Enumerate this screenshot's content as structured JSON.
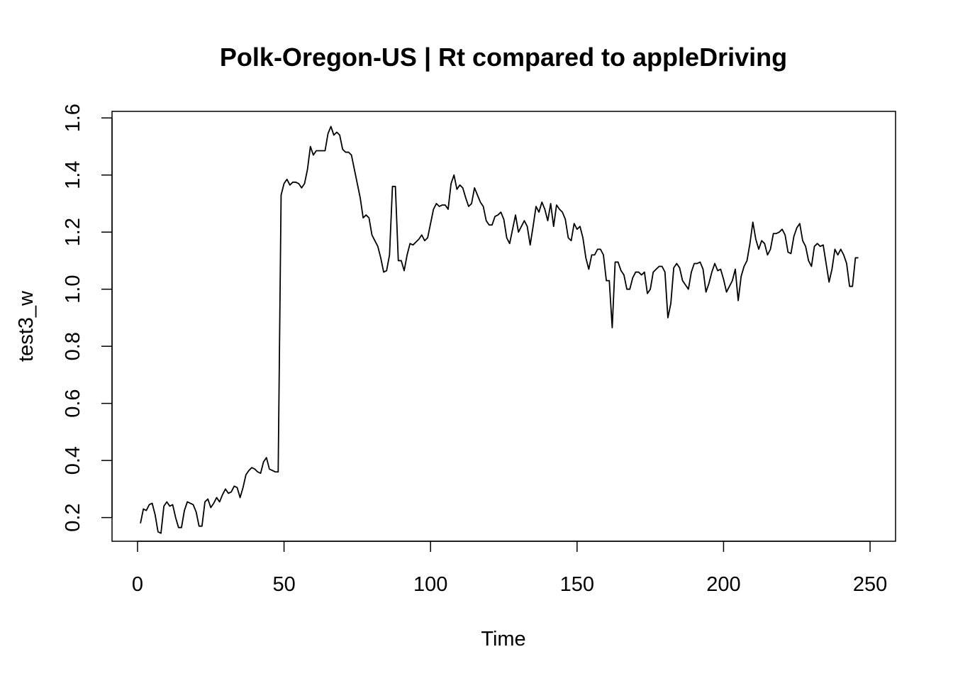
{
  "chart_data": {
    "type": "line",
    "title": "Polk-Oregon-US | Rt compared to appleDriving",
    "xlabel": "Time",
    "ylabel": "test3_w",
    "xlim": [
      -8.7,
      258.7
    ],
    "ylim": [
      0.117,
      1.623
    ],
    "x_ticks": [
      0,
      50,
      100,
      150,
      200,
      250
    ],
    "y_ticks": [
      0.2,
      0.4,
      0.6,
      0.8,
      1.0,
      1.2,
      1.4,
      1.6
    ],
    "x_tick_labels": [
      "0",
      "50",
      "100",
      "150",
      "200",
      "250"
    ],
    "y_tick_labels": [
      "0.2",
      "0.4",
      "0.6",
      "0.8",
      "1.0",
      "1.2",
      "1.4",
      "1.6"
    ],
    "grid": false,
    "series": [
      {
        "values": [
          0.18,
          0.23,
          0.225,
          0.245,
          0.25,
          0.21,
          0.15,
          0.145,
          0.24,
          0.255,
          0.24,
          0.245,
          0.2,
          0.165,
          0.165,
          0.225,
          0.255,
          0.25,
          0.245,
          0.22,
          0.17,
          0.17,
          0.255,
          0.265,
          0.235,
          0.25,
          0.27,
          0.255,
          0.28,
          0.3,
          0.285,
          0.29,
          0.31,
          0.305,
          0.27,
          0.305,
          0.35,
          0.365,
          0.375,
          0.37,
          0.36,
          0.355,
          0.395,
          0.41,
          0.37,
          0.365,
          0.36,
          0.36,
          1.33,
          1.37,
          1.385,
          1.365,
          1.375,
          1.375,
          1.37,
          1.355,
          1.37,
          1.42,
          1.5,
          1.47,
          1.485,
          1.485,
          1.485,
          1.485,
          1.545,
          1.57,
          1.54,
          1.55,
          1.54,
          1.49,
          1.48,
          1.48,
          1.47,
          1.42,
          1.37,
          1.32,
          1.25,
          1.26,
          1.25,
          1.19,
          1.17,
          1.15,
          1.11,
          1.06,
          1.065,
          1.12,
          1.36,
          1.36,
          1.1,
          1.1,
          1.065,
          1.12,
          1.16,
          1.155,
          1.165,
          1.175,
          1.19,
          1.17,
          1.18,
          1.23,
          1.28,
          1.3,
          1.29,
          1.295,
          1.295,
          1.28,
          1.37,
          1.4,
          1.35,
          1.365,
          1.355,
          1.32,
          1.29,
          1.3,
          1.355,
          1.33,
          1.305,
          1.29,
          1.24,
          1.225,
          1.225,
          1.255,
          1.26,
          1.27,
          1.245,
          1.18,
          1.16,
          1.21,
          1.26,
          1.2,
          1.22,
          1.24,
          1.22,
          1.155,
          1.22,
          1.29,
          1.27,
          1.305,
          1.28,
          1.24,
          1.3,
          1.22,
          1.295,
          1.28,
          1.27,
          1.245,
          1.18,
          1.17,
          1.23,
          1.21,
          1.22,
          1.18,
          1.11,
          1.07,
          1.12,
          1.12,
          1.14,
          1.14,
          1.12,
          1.03,
          1.03,
          0.865,
          1.095,
          1.095,
          1.065,
          1.05,
          1.0,
          1.0,
          1.04,
          1.06,
          1.06,
          1.05,
          1.06,
          0.985,
          1.0,
          1.06,
          1.07,
          1.08,
          1.08,
          1.06,
          0.9,
          0.95,
          1.075,
          1.09,
          1.075,
          1.03,
          1.015,
          1.0,
          1.06,
          1.09,
          1.09,
          1.095,
          1.07,
          0.99,
          1.02,
          1.06,
          1.09,
          1.065,
          1.07,
          1.035,
          0.99,
          1.01,
          1.03,
          1.07,
          0.96,
          1.045,
          1.08,
          1.1,
          1.16,
          1.235,
          1.175,
          1.14,
          1.17,
          1.16,
          1.12,
          1.14,
          1.195,
          1.195,
          1.2,
          1.21,
          1.19,
          1.13,
          1.125,
          1.185,
          1.215,
          1.23,
          1.17,
          1.15,
          1.1,
          1.08,
          1.15,
          1.16,
          1.15,
          1.155,
          1.09,
          1.025,
          1.07,
          1.14,
          1.12,
          1.14,
          1.12,
          1.09,
          1.01,
          1.01,
          1.11,
          1.11
        ]
      }
    ]
  }
}
